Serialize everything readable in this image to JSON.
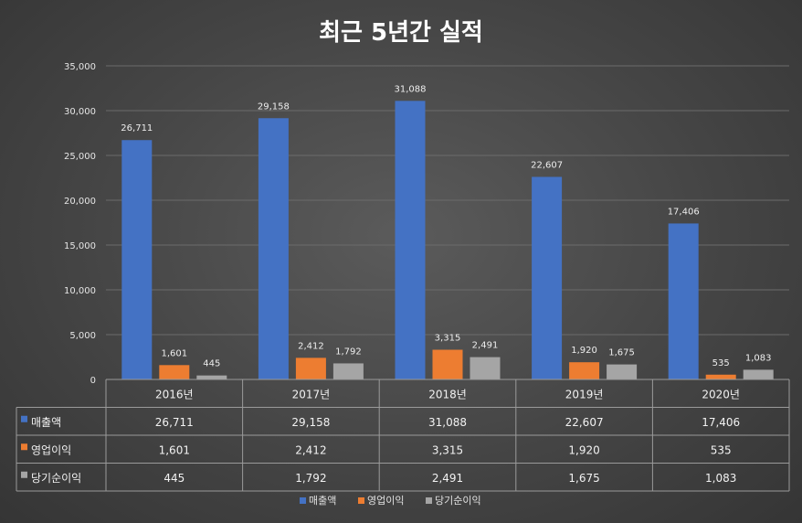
{
  "chart_data": {
    "type": "bar",
    "title": "최근 5년간 실적",
    "categories": [
      "2016년",
      "2017년",
      "2018년",
      "2019년",
      "2020년"
    ],
    "series": [
      {
        "name": "매출액",
        "values": [
          26711,
          29158,
          31088,
          22607,
          17406
        ],
        "color": "#4472c4",
        "labels": [
          "26,711",
          "29,158",
          "31,088",
          "22,607",
          "17,406"
        ]
      },
      {
        "name": "영업이익",
        "values": [
          1601,
          2412,
          3315,
          1920,
          535
        ],
        "color": "#ed7d31",
        "labels": [
          "1,601",
          "2,412",
          "3,315",
          "1,920",
          "535"
        ]
      },
      {
        "name": "당기순이익",
        "values": [
          445,
          1792,
          2491,
          1675,
          1083
        ],
        "color": "#a5a5a5",
        "labels": [
          "445",
          "1,792",
          "2,491",
          "1,675",
          "1,083"
        ]
      }
    ],
    "ylim": [
      0,
      35000
    ],
    "yticks": [
      0,
      5000,
      10000,
      15000,
      20000,
      25000,
      30000,
      35000
    ],
    "ytick_labels": [
      "0",
      "5,000",
      "10,000",
      "15,000",
      "20,000",
      "25,000",
      "30,000",
      "35,000"
    ],
    "grid": true,
    "legend": "bottom",
    "data_table": true
  }
}
